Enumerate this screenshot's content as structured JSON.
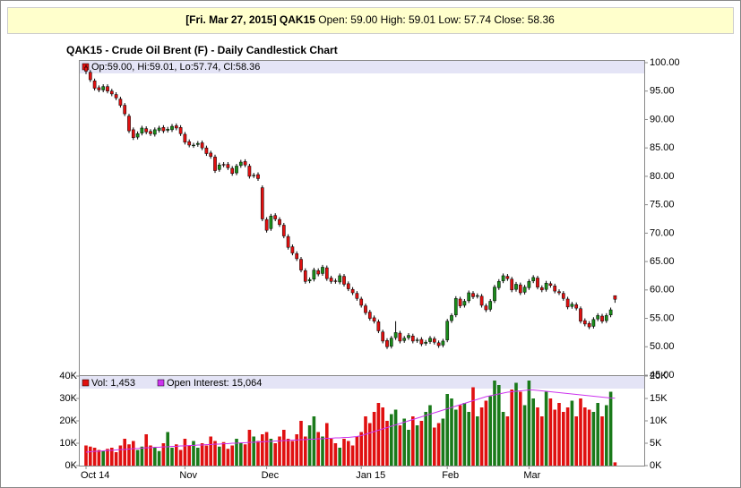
{
  "header": {
    "date_symbol": "[Fri. Mar 27, 2015] QAK15",
    "quote": "Open: 59.00 High: 59.01 Low: 57.74 Close: 58.36"
  },
  "chart_data": [
    {
      "type": "candlestick",
      "title": "QAK15 - Crude Oil Brent (F) - Daily Candlestick Chart",
      "ohlc_label": "Op:59.00, Hi:59.01, Lo:57.74, Cl:58.36",
      "up_color": "#1a8c1a",
      "down_color": "#e01010",
      "ylim": [
        45,
        100
      ],
      "yticks": [
        {
          "value": 100,
          "label": "100.00"
        },
        {
          "value": 95,
          "label": "95.00"
        },
        {
          "value": 90,
          "label": "90.00"
        },
        {
          "value": 85,
          "label": "85.00"
        },
        {
          "value": 80,
          "label": "80.00"
        },
        {
          "value": 75,
          "label": "75.00"
        },
        {
          "value": 70,
          "label": "70.00"
        },
        {
          "value": 65,
          "label": "65.00"
        },
        {
          "value": 60,
          "label": "60.00"
        },
        {
          "value": 55,
          "label": "55.00"
        },
        {
          "value": 50,
          "label": "50.00"
        },
        {
          "value": 45,
          "label": "45.00"
        }
      ],
      "open": [
        99.2,
        98.3,
        96.8,
        95.6,
        95.2,
        95.8,
        95.0,
        94.4,
        93.6,
        92.5,
        90.6,
        88.2,
        86.9,
        87.6,
        88.4,
        87.9,
        87.4,
        88.1,
        88.6,
        88.1,
        88.2,
        88.9,
        88.6,
        87.4,
        86.1,
        85.4,
        85.6,
        85.9,
        85.0,
        84.1,
        83.4,
        81.2,
        82.1,
        82.1,
        81.4,
        80.6,
        81.9,
        82.6,
        81.8,
        80.1,
        80.3,
        78.0,
        72.4,
        70.8,
        73.1,
        72.4,
        71.4,
        69.4,
        67.6,
        66.4,
        65.4,
        63.4,
        61.6,
        61.9,
        63.4,
        62.9,
        63.9,
        62.1,
        61.6,
        61.4,
        62.4,
        61.1,
        60.1,
        59.4,
        58.4,
        57.2,
        56.1,
        55.1,
        54.4,
        52.6,
        51.1,
        50.1,
        51.6,
        52.4,
        51.1,
        51.6,
        51.9,
        51.1,
        51.3,
        50.6,
        50.9,
        51.4,
        50.7,
        50.3,
        51.2,
        54.6,
        55.6,
        58.4,
        57.3,
        58.1,
        59.4,
        58.9,
        58.9,
        57.2,
        56.6,
        58.1,
        60.4,
        61.6,
        62.4,
        61.9,
        60.1,
        60.9,
        59.6,
        60.4,
        61.6,
        62.1,
        60.4,
        60.1,
        61.1,
        60.7,
        59.7,
        59.4,
        58.4,
        57.1,
        57.4,
        56.7,
        54.6,
        54.1,
        53.6,
        54.9,
        55.4,
        54.6,
        55.6,
        59.0
      ],
      "high": [
        99.6,
        98.7,
        97.2,
        96.0,
        96.2,
        96.2,
        95.4,
        94.8,
        94.0,
        92.9,
        91.0,
        88.6,
        87.9,
        88.9,
        88.8,
        88.3,
        88.6,
        88.9,
        89.0,
        88.7,
        89.2,
        89.3,
        89.0,
        87.8,
        86.5,
        85.9,
        86.2,
        86.3,
        85.4,
        84.5,
        83.8,
        82.4,
        82.5,
        82.5,
        81.8,
        82.2,
        82.9,
        83.0,
        82.2,
        80.6,
        80.7,
        78.4,
        72.8,
        73.4,
        73.5,
        72.8,
        71.8,
        69.8,
        68.0,
        66.8,
        65.8,
        63.8,
        62.2,
        63.9,
        63.8,
        64.4,
        64.3,
        62.5,
        62.0,
        62.9,
        62.8,
        61.5,
        60.5,
        59.8,
        58.8,
        57.6,
        56.5,
        55.5,
        54.8,
        53.0,
        51.5,
        51.9,
        54.5,
        52.8,
        51.9,
        52.4,
        52.3,
        51.6,
        51.7,
        51.2,
        51.9,
        51.8,
        51.1,
        51.4,
        54.9,
        55.9,
        58.9,
        58.8,
        58.4,
        59.9,
        59.8,
        59.4,
        59.3,
        57.6,
        58.4,
        60.9,
        61.9,
        62.9,
        62.8,
        62.3,
        61.4,
        61.3,
        60.9,
        61.9,
        62.6,
        62.5,
        60.8,
        61.6,
        61.5,
        61.1,
        60.1,
        59.8,
        58.8,
        57.9,
        57.8,
        57.1,
        55.0,
        54.5,
        55.2,
        55.9,
        55.8,
        55.9,
        56.9,
        59.01
      ],
      "low": [
        98.0,
        96.6,
        95.1,
        94.8,
        94.8,
        94.6,
        94.1,
        93.4,
        92.1,
        90.6,
        87.6,
        86.4,
        86.5,
        87.2,
        87.4,
        87.1,
        87.0,
        87.7,
        87.6,
        87.7,
        87.8,
        88.1,
        87.1,
        85.6,
        85.1,
        85.0,
        85.2,
        84.6,
        83.6,
        83.1,
        80.6,
        80.8,
        81.6,
        81.1,
        80.1,
        80.2,
        81.5,
        81.6,
        79.6,
        79.7,
        79.2,
        72.1,
        70.1,
        70.4,
        72.1,
        71.1,
        69.1,
        67.1,
        66.1,
        65.1,
        63.1,
        61.1,
        61.2,
        61.5,
        62.4,
        62.5,
        61.6,
        61.1,
        61.1,
        61.0,
        60.6,
        59.8,
        59.1,
        58.1,
        56.9,
        55.6,
        54.6,
        54.1,
        52.4,
        50.6,
        49.6,
        49.7,
        51.2,
        50.6,
        50.7,
        51.2,
        50.6,
        50.7,
        50.1,
        50.2,
        50.5,
        50.4,
        49.8,
        49.9,
        50.8,
        54.2,
        55.2,
        56.8,
        56.9,
        57.7,
        58.4,
        58.5,
        56.9,
        56.1,
        56.2,
        57.7,
        60.0,
        61.2,
        61.6,
        59.6,
        59.7,
        59.1,
        59.2,
        60.0,
        61.2,
        60.1,
        59.6,
        59.7,
        60.4,
        59.4,
        59.1,
        58.1,
        56.6,
        56.7,
        56.4,
        54.1,
        53.6,
        53.1,
        53.2,
        54.5,
        54.1,
        54.2,
        55.2,
        57.74
      ],
      "close": [
        98.5,
        97.0,
        95.5,
        95.2,
        95.8,
        95.0,
        94.5,
        93.8,
        92.5,
        91.0,
        88.0,
        86.8,
        87.5,
        88.5,
        87.8,
        87.5,
        88.2,
        88.5,
        88.0,
        88.3,
        88.8,
        88.5,
        87.5,
        86.0,
        85.5,
        85.5,
        85.8,
        85.0,
        84.0,
        83.5,
        81.0,
        82.0,
        82.0,
        81.5,
        80.5,
        81.8,
        82.5,
        82.0,
        80.0,
        80.2,
        79.6,
        72.5,
        70.5,
        73.0,
        72.5,
        71.5,
        69.5,
        67.5,
        66.5,
        65.5,
        63.5,
        61.5,
        61.8,
        63.5,
        62.8,
        64.0,
        62.0,
        61.5,
        61.5,
        62.5,
        61.0,
        60.2,
        59.5,
        58.5,
        57.3,
        56.0,
        55.0,
        54.5,
        52.8,
        51.0,
        50.0,
        51.5,
        52.5,
        51.0,
        51.5,
        52.0,
        51.0,
        51.2,
        50.5,
        50.8,
        51.5,
        50.8,
        50.2,
        51.0,
        54.5,
        55.5,
        58.5,
        57.2,
        58.0,
        59.5,
        58.8,
        59.0,
        57.3,
        56.5,
        58.0,
        60.5,
        61.5,
        62.5,
        62.0,
        60.0,
        61.0,
        59.5,
        60.5,
        61.5,
        62.2,
        60.5,
        60.0,
        61.2,
        60.8,
        59.8,
        59.5,
        58.5,
        57.0,
        57.5,
        56.8,
        54.5,
        54.0,
        53.5,
        54.8,
        55.5,
        54.5,
        55.5,
        56.5,
        58.36
      ]
    },
    {
      "type": "bar",
      "categories": [
        "Oct 14",
        null,
        null,
        null,
        null,
        null,
        null,
        null,
        null,
        null,
        null,
        null,
        null,
        null,
        null,
        null,
        null,
        null,
        null,
        null,
        null,
        null,
        null,
        "Nov",
        null,
        null,
        null,
        null,
        null,
        null,
        null,
        null,
        null,
        null,
        null,
        null,
        null,
        null,
        null,
        null,
        null,
        null,
        "Dec",
        null,
        null,
        null,
        null,
        null,
        null,
        null,
        null,
        null,
        null,
        null,
        null,
        null,
        null,
        null,
        null,
        null,
        null,
        null,
        null,
        null,
        "Jan 15",
        null,
        null,
        null,
        null,
        null,
        null,
        null,
        null,
        null,
        null,
        null,
        null,
        null,
        null,
        null,
        null,
        null,
        null,
        null,
        "Feb",
        null,
        null,
        null,
        null,
        null,
        null,
        null,
        null,
        null,
        null,
        null,
        null,
        null,
        null,
        null,
        null,
        null,
        null,
        "Mar",
        null,
        null,
        null,
        null,
        null,
        null,
        null,
        null,
        null,
        null,
        null,
        null,
        null,
        null,
        null,
        null,
        null,
        null,
        null,
        null
      ],
      "ylim": [
        0,
        40000
      ],
      "yticks": [
        {
          "value": 0,
          "label": "0K"
        },
        {
          "value": 10000,
          "label": "10K"
        },
        {
          "value": 20000,
          "label": "20K"
        },
        {
          "value": 30000,
          "label": "30K"
        },
        {
          "value": 40000,
          "label": "40K"
        }
      ],
      "y2lim": [
        0,
        20000
      ],
      "y2ticks": [
        {
          "value": 0,
          "label": "0K"
        },
        {
          "value": 5000,
          "label": "5K"
        },
        {
          "value": 10000,
          "label": "10K"
        },
        {
          "value": 15000,
          "label": "15K"
        },
        {
          "value": 20000,
          "label": "20K"
        }
      ],
      "series": [
        {
          "name": "Vol: 1,453",
          "color": "#e01010",
          "up_color": "#1a7a1a",
          "values": [
            9000,
            8500,
            8000,
            7000,
            6500,
            7500,
            8000,
            6000,
            9000,
            12000,
            9500,
            11000,
            7000,
            8500,
            14000,
            9000,
            8000,
            6500,
            10000,
            15000,
            8000,
            9500,
            7000,
            12000,
            9000,
            11000,
            8000,
            10000,
            9000,
            13000,
            11000,
            8500,
            10500,
            7500,
            9000,
            12000,
            10000,
            9500,
            16000,
            13000,
            11000,
            14000,
            15000,
            12000,
            10000,
            13000,
            16000,
            12000,
            11000,
            14000,
            20000,
            13000,
            18000,
            22000,
            15000,
            13000,
            19000,
            12000,
            10000,
            8000,
            12000,
            11000,
            9000,
            13000,
            15000,
            22000,
            19000,
            24000,
            28000,
            26000,
            20000,
            23000,
            25000,
            18000,
            21000,
            16000,
            22000,
            18000,
            20000,
            24000,
            27000,
            17000,
            19000,
            21000,
            32000,
            30000,
            25000,
            27000,
            28000,
            24000,
            35000,
            22000,
            26000,
            29000,
            31000,
            38000,
            36000,
            24000,
            22000,
            34000,
            37000,
            33000,
            27000,
            38000,
            30000,
            26000,
            22000,
            33000,
            30000,
            25000,
            28000,
            24000,
            26000,
            29000,
            22000,
            30000,
            26000,
            25000,
            24000,
            28000,
            22000,
            27000,
            33000,
            1453
          ]
        },
        {
          "name": "Open Interest: 15,064",
          "color": "#cc33ee",
          "type": "line",
          "axis": "y2",
          "values": [
            3000,
            3100,
            3200,
            3200,
            3300,
            3400,
            3400,
            3500,
            3600,
            3600,
            3700,
            3800,
            3800,
            3900,
            4000,
            4000,
            4100,
            4100,
            4200,
            4200,
            4300,
            4300,
            4400,
            4400,
            4500,
            4500,
            4600,
            4600,
            4700,
            4700,
            4800,
            4800,
            4900,
            4900,
            5000,
            5000,
            5100,
            5100,
            5200,
            5200,
            5300,
            5300,
            5400,
            5400,
            5500,
            5500,
            5600,
            5600,
            5700,
            5700,
            5800,
            5800,
            5900,
            5900,
            6000,
            6000,
            6100,
            6100,
            6200,
            6200,
            6300,
            6300,
            6400,
            6500,
            6700,
            7000,
            7300,
            7600,
            7900,
            8200,
            8500,
            8800,
            9100,
            9400,
            9700,
            10000,
            10300,
            10600,
            10900,
            11200,
            11500,
            11800,
            12100,
            12400,
            12700,
            13000,
            13300,
            13600,
            13900,
            14200,
            14500,
            14800,
            15100,
            15400,
            15600,
            15800,
            16000,
            16200,
            16400,
            16500,
            16600,
            16700,
            16800,
            16900,
            16900,
            16800,
            16700,
            16600,
            16500,
            16400,
            16300,
            16200,
            16100,
            16000,
            15900,
            15800,
            15700,
            15600,
            15500,
            15400,
            15300,
            15200,
            15100,
            15064
          ]
        }
      ]
    }
  ]
}
